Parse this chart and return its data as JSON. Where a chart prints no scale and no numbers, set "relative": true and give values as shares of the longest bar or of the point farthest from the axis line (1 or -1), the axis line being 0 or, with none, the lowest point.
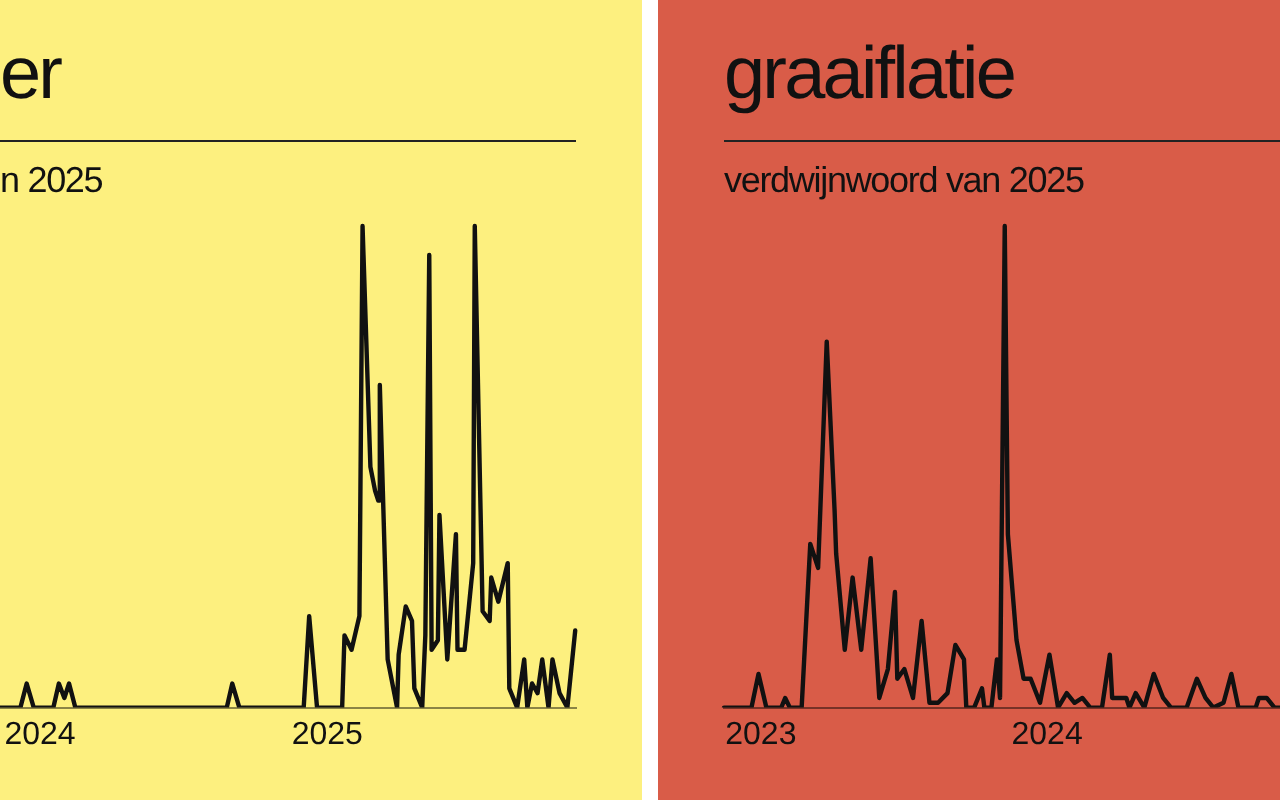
{
  "chart_data": [
    {
      "type": "line",
      "title": "er",
      "subtitle": "n 2025",
      "relative": true,
      "color": "#111111",
      "x": [
        "2023-11-11",
        "2023-12-07",
        "2023-12-15",
        "2023-12-24",
        "2024-01-18",
        "2024-01-25",
        "2024-02-01",
        "2024-02-07",
        "2024-02-15",
        "2024-08-26",
        "2024-09-02",
        "2024-09-11",
        "2024-12-02",
        "2024-12-09",
        "2024-12-19",
        "2025-01-20",
        "2025-01-23",
        "2025-02-01",
        "2025-02-11",
        "2025-02-15",
        "2025-02-25",
        "2025-03-03",
        "2025-03-07",
        "2025-03-09",
        "2025-03-19",
        "2025-03-31",
        "2025-04-02",
        "2025-04-11",
        "2025-04-19",
        "2025-04-22",
        "2025-05-02",
        "2025-05-06",
        "2025-05-11",
        "2025-05-14",
        "2025-05-22",
        "2025-05-24",
        "2025-06-03",
        "2025-06-14",
        "2025-06-16",
        "2025-06-25",
        "2025-07-06",
        "2025-07-08",
        "2025-07-18",
        "2025-07-27",
        "2025-07-29",
        "2025-08-07",
        "2025-08-19",
        "2025-08-21",
        "2025-08-31",
        "2025-09-09",
        "2025-09-13",
        "2025-09-19",
        "2025-09-26",
        "2025-10-02",
        "2025-10-10",
        "2025-10-15",
        "2025-10-24",
        "2025-11-03",
        "2025-11-13"
      ],
      "values": [
        0,
        0,
        0.05,
        0,
        0,
        0.05,
        0.02,
        0.05,
        0,
        0,
        0.05,
        0,
        0,
        0.19,
        0,
        0,
        0.15,
        0.12,
        0.19,
        1,
        0.5,
        0.45,
        0.43,
        0.67,
        0.1,
        0,
        0.11,
        0.21,
        0.18,
        0.04,
        0,
        0.15,
        0.94,
        0.12,
        0.14,
        0.4,
        0.1,
        0.36,
        0.12,
        0.12,
        0.3,
        1,
        0.2,
        0.18,
        0.27,
        0.22,
        0.3,
        0.04,
        0,
        0.1,
        0,
        0.05,
        0.03,
        0.1,
        0,
        0.1,
        0.03,
        0,
        0.16
      ],
      "xlim": [
        "2023-11-11",
        "2025-11-14"
      ],
      "xticks": [
        "2024",
        "2025"
      ]
    },
    {
      "type": "line",
      "title": "graaiflatie",
      "subtitle": "verdwijnwoord van 2025",
      "relative": true,
      "color": "#111111",
      "x": [
        "2022-11-15",
        "2022-12-20",
        "2022-12-29",
        "2023-01-08",
        "2023-01-27",
        "2023-02-01",
        "2023-02-07",
        "2023-02-22",
        "2023-03-05",
        "2023-03-15",
        "2023-03-26",
        "2023-04-05",
        "2023-04-07",
        "2023-04-18",
        "2023-04-28",
        "2023-05-09",
        "2023-05-21",
        "2023-06-01",
        "2023-06-12",
        "2023-06-21",
        "2023-06-24",
        "2023-07-03",
        "2023-07-14",
        "2023-07-25",
        "2023-08-04",
        "2023-08-15",
        "2023-08-27",
        "2023-09-06",
        "2023-09-17",
        "2023-09-20",
        "2023-09-30",
        "2023-10-10",
        "2023-10-13",
        "2023-10-22",
        "2023-10-29",
        "2023-11-02",
        "2023-11-08",
        "2023-11-12",
        "2023-11-23",
        "2023-12-02",
        "2023-12-11",
        "2023-12-23",
        "2024-01-04",
        "2024-01-15",
        "2024-01-26",
        "2024-02-05",
        "2024-02-15",
        "2024-02-25",
        "2024-03-11",
        "2024-03-21",
        "2024-03-24",
        "2024-04-11",
        "2024-04-15",
        "2024-04-23",
        "2024-05-04",
        "2024-05-16",
        "2024-05-28",
        "2024-06-07",
        "2024-06-27",
        "2024-07-10",
        "2024-07-21",
        "2024-07-31",
        "2024-08-13",
        "2024-08-23",
        "2024-09-01",
        "2024-09-23",
        "2024-09-27",
        "2024-10-07",
        "2024-10-17",
        "2024-10-24"
      ],
      "values": [
        0,
        0,
        0.07,
        0,
        0,
        0.02,
        0,
        0,
        0.34,
        0.29,
        0.76,
        0.41,
        0.32,
        0.12,
        0.27,
        0.12,
        0.31,
        0.02,
        0.08,
        0.24,
        0.06,
        0.08,
        0.02,
        0.18,
        0.01,
        0.01,
        0.03,
        0.13,
        0.1,
        0,
        0,
        0.04,
        0,
        0,
        0.1,
        0.02,
        1,
        0.36,
        0.14,
        0.06,
        0.06,
        0.01,
        0.11,
        0,
        0.03,
        0.01,
        0.02,
        0,
        0,
        0.11,
        0.02,
        0.02,
        0,
        0.03,
        0,
        0.07,
        0.02,
        0,
        0,
        0.06,
        0.02,
        0,
        0.01,
        0.07,
        0,
        0,
        0.02,
        0.02,
        0,
        0
      ],
      "xlim": [
        "2022-11-15",
        "2024-10-24"
      ],
      "xticks": [
        "2023",
        "2024"
      ]
    }
  ]
}
